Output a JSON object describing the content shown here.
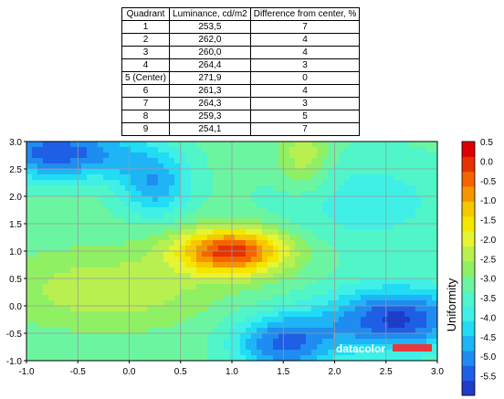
{
  "table": {
    "headers": [
      "Quadrant",
      "Luminance, cd/m2",
      "Difference from center, %"
    ],
    "rows": [
      [
        "1",
        "253,5",
        "7"
      ],
      [
        "2",
        "262,0",
        "4"
      ],
      [
        "3",
        "260,0",
        "4"
      ],
      [
        "4",
        "264,4",
        "3"
      ],
      [
        "5 (Center)",
        "271,9",
        "0"
      ],
      [
        "6",
        "261,3",
        "4"
      ],
      [
        "7",
        "264,3",
        "3"
      ],
      [
        "8",
        "259,3",
        "5"
      ],
      [
        "9",
        "254,1",
        "7"
      ]
    ]
  },
  "chart_data": {
    "type": "heatmap",
    "subtype": "filled-contour",
    "title": "",
    "xlabel": "",
    "ylabel": "",
    "xlim": [
      -1.0,
      3.0
    ],
    "ylim": [
      -1.0,
      3.0
    ],
    "x_ticks": [
      "-1.0",
      "-0.5",
      "0.0",
      "0.5",
      "1.0",
      "1.5",
      "2.0",
      "2.5",
      "3.0"
    ],
    "y_ticks": [
      "-1.0",
      "-0.5",
      "0.0",
      "0.5",
      "1.0",
      "1.5",
      "2.0",
      "2.5",
      "3.0"
    ],
    "grid": true,
    "colorbar": {
      "label": "Uniformity",
      "ticks": [
        "0.5",
        "0.0",
        "-0.5",
        "-1.0",
        "-1.5",
        "-2.0",
        "-2.5",
        "-3.0",
        "-3.5",
        "-4.0",
        "-4.5",
        "-5.0",
        "-5.5"
      ],
      "range": [
        -6.0,
        0.5
      ],
      "colors": [
        "#1f3cc8",
        "#1e5fe6",
        "#1e8cf0",
        "#1eb4f5",
        "#20dcf5",
        "#40f0e6",
        "#50f5c8",
        "#6cf5a0",
        "#90f064",
        "#b8f050",
        "#e6f532",
        "#f5e600",
        "#f5c800",
        "#f59600",
        "#f56400",
        "#e63200",
        "#dc0000"
      ],
      "placement": "right"
    },
    "peaks": [
      {
        "x": 1.0,
        "y": 1.0,
        "value": 0.0
      },
      {
        "x": -0.7,
        "y": 2.7,
        "value": -6.0
      },
      {
        "x": 2.6,
        "y": -0.2,
        "value": -6.0
      },
      {
        "x": 1.3,
        "y": -0.5,
        "value": -5.5
      }
    ]
  },
  "watermark": "datacolor"
}
